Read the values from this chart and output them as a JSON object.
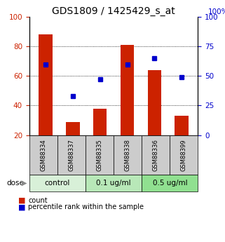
{
  "title": "GDS1809 / 1425429_s_at",
  "samples": [
    "GSM88334",
    "GSM88337",
    "GSM88335",
    "GSM88338",
    "GSM88336",
    "GSM88399"
  ],
  "count_values": [
    88,
    29,
    38,
    81,
    64,
    33
  ],
  "percentile_values": [
    60,
    33,
    47,
    60,
    65,
    49
  ],
  "left_ylim": [
    20,
    100
  ],
  "left_yticks": [
    20,
    40,
    60,
    80,
    100
  ],
  "right_ylim": [
    0,
    100
  ],
  "right_yticks": [
    0,
    25,
    50,
    75,
    100
  ],
  "right_ylabel": "100%",
  "bar_color": "#cc2200",
  "dot_color": "#0000cc",
  "groups": [
    {
      "label": "control",
      "indices": [
        0,
        1
      ],
      "color": "#d8f0d8"
    },
    {
      "label": "0.1 ug/ml",
      "indices": [
        2,
        3
      ],
      "color": "#b8e8b8"
    },
    {
      "label": "0.5 ug/ml",
      "indices": [
        4,
        5
      ],
      "color": "#90e090"
    }
  ],
  "dose_label": "dose",
  "legend_count_label": "count",
  "legend_percentile_label": "percentile rank within the sample",
  "title_fontsize": 10,
  "axis_label_color_left": "#cc2200",
  "axis_label_color_right": "#0000cc",
  "sample_label_bg": "#cccccc",
  "sample_label_fontsize": 6,
  "dose_fontsize": 7.5,
  "legend_fontsize": 7
}
